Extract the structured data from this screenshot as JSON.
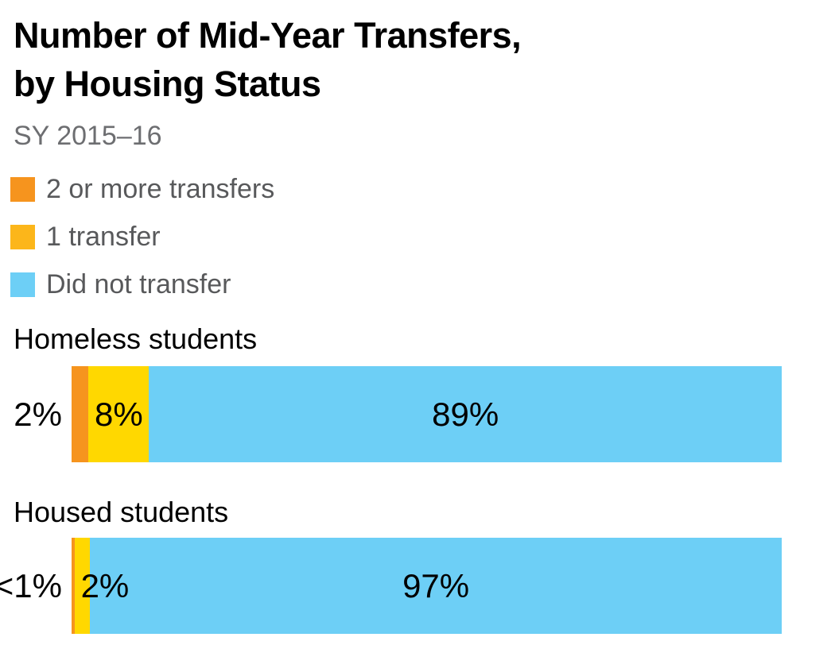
{
  "page": {
    "background": "#ffffff"
  },
  "chart_data": {
    "type": "bar",
    "variant": "horizontal_stacked",
    "title": "Number of Mid-Year Transfers, by Housing Status",
    "title_lines": [
      "Number of Mid-Year Transfers,",
      "by Housing Status"
    ],
    "subtitle": "SY 2015–16",
    "legend_position": "top-left",
    "legend": [
      {
        "label": "2 or more transfers",
        "color": "#F6941E"
      },
      {
        "label": "1 transfer",
        "color": "#FCB61A"
      },
      {
        "label": "Did not transfer",
        "color": "#6DCFF6"
      }
    ],
    "categories": [
      "Homeless students",
      "Housed students"
    ],
    "series": [
      {
        "name": "2 or more transfers",
        "values": [
          "2%",
          "<1%"
        ]
      },
      {
        "name": "1 transfer",
        "values": [
          "8%",
          "2%"
        ]
      },
      {
        "name": "Did not transfer",
        "values": [
          "89%",
          "97%"
        ]
      }
    ],
    "bars": [
      {
        "category": "Homeless students",
        "outside_label": "2%",
        "segments": [
          {
            "key": "2-or-more-transfers",
            "value": "2%",
            "width_pct": 2.4,
            "color": "#F6941E",
            "label_style": "none"
          },
          {
            "key": "1-transfer",
            "value": "8%",
            "width_pct": 8.5,
            "color": "#FFD800",
            "label_style": "center"
          },
          {
            "key": "did-not-transfer",
            "value": "89%",
            "width_pct": 89.1,
            "color": "#6DCFF6",
            "label_style": "center"
          }
        ]
      },
      {
        "category": "Housed students",
        "outside_label": "<1%",
        "segments": [
          {
            "key": "2-or-more-transfers",
            "value": "<1%",
            "width_pct": 0.4,
            "color": "#F6941E",
            "label_style": "none"
          },
          {
            "key": "1-transfer",
            "value": "2%",
            "width_pct": 2.2,
            "color": "#FFD800",
            "label_style": "overflow"
          },
          {
            "key": "did-not-transfer",
            "value": "97%",
            "width_pct": 97.4,
            "color": "#6DCFF6",
            "label_style": "center"
          }
        ]
      }
    ],
    "text_colors": {
      "title": "#000000",
      "subtitle": "#6d6e71",
      "legend": "#58595b",
      "labels": "#000000"
    }
  }
}
